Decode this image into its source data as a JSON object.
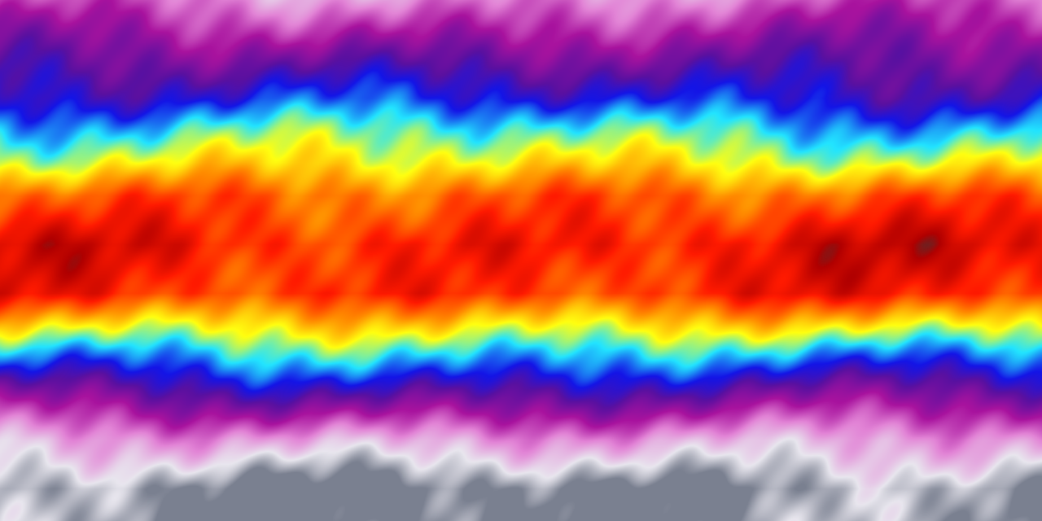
{
  "map": {
    "projection": "equirectangular",
    "colors": {
      "palette": [
        "#7a8090",
        "#e8e6ee",
        "#e284d6",
        "#a8129e",
        "#5a10a0",
        "#1414e6",
        "#22e4ff",
        "#ffff10",
        "#ff8a00",
        "#ff1a00",
        "#b00000",
        "#3a3a3a"
      ]
    }
  }
}
